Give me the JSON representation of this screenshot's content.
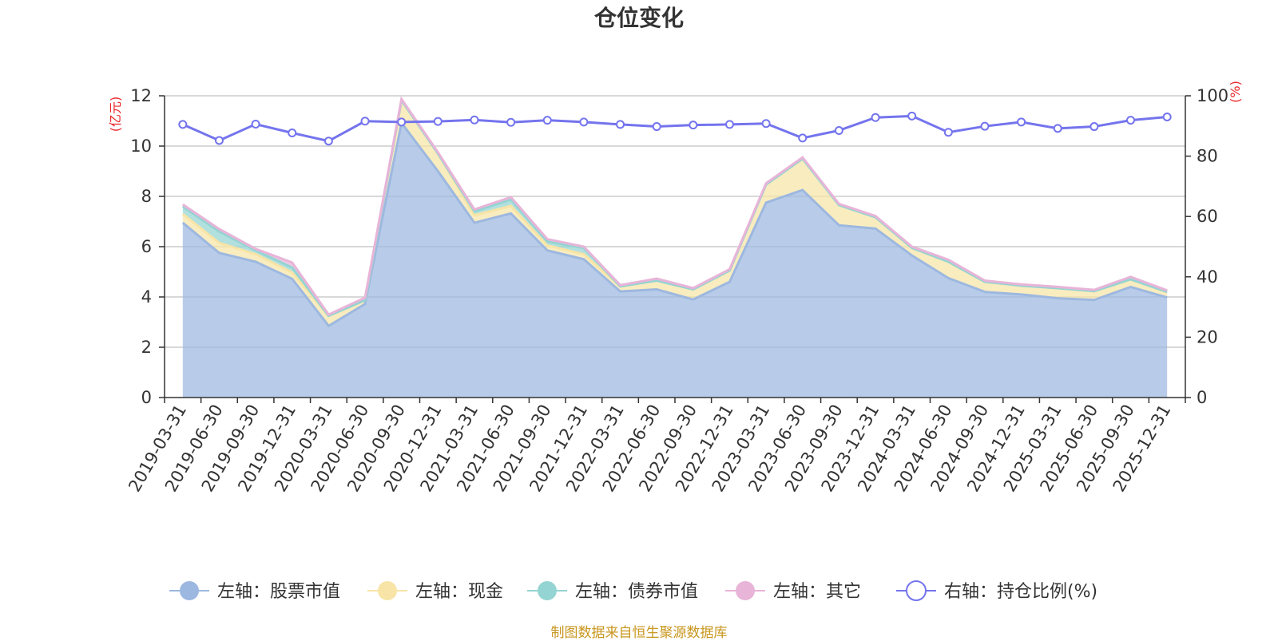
{
  "source_note": "制图数据来自恒生聚源数据库",
  "chart_data": {
    "type": "area",
    "title": "仓位变化",
    "y_left_unit": "(亿元)",
    "y_right_unit": "(%)",
    "y_left_range": [
      0,
      12
    ],
    "y_right_range": [
      0,
      100
    ],
    "y_left_ticks": [
      "0",
      "2",
      "4",
      "6",
      "8",
      "10",
      "12"
    ],
    "y_right_ticks": [
      "0",
      "20",
      "40",
      "60",
      "80",
      "100"
    ],
    "grid": true,
    "legend_position": "bottom",
    "categories": [
      "2019-03-31",
      "2019-06-30",
      "2019-09-30",
      "2019-12-31",
      "2020-03-31",
      "2020-06-30",
      "2020-09-30",
      "2020-12-31",
      "2021-03-31",
      "2021-06-30",
      "2021-09-30",
      "2021-12-31",
      "2022-03-31",
      "2022-06-30",
      "2022-09-30",
      "2022-12-31",
      "2023-03-31",
      "2023-06-30",
      "2023-09-30",
      "2023-12-31",
      "2024-03-31",
      "2024-06-30",
      "2024-09-30",
      "2024-12-31",
      "2025-03-31",
      "2025-06-30",
      "2025-09-30",
      "2025-12-31"
    ],
    "series": [
      {
        "name": "左轴：股票市值",
        "axis": "left",
        "stack": true,
        "color": "#9db8e0",
        "values": [
          6.95,
          5.75,
          5.4,
          4.72,
          2.85,
          3.72,
          10.92,
          9.0,
          6.95,
          7.32,
          5.85,
          5.5,
          4.22,
          4.3,
          3.9,
          4.6,
          7.75,
          8.25,
          6.85,
          6.72,
          5.65,
          4.75,
          4.2,
          4.1,
          3.95,
          3.88,
          4.4,
          3.98
        ]
      },
      {
        "name": "左轴：现金",
        "axis": "left",
        "stack": true,
        "color": "#f7e4a6",
        "values": [
          0.35,
          0.4,
          0.3,
          0.25,
          0.4,
          0.15,
          0.9,
          0.7,
          0.3,
          0.3,
          0.2,
          0.2,
          0.2,
          0.35,
          0.4,
          0.45,
          0.72,
          1.25,
          0.8,
          0.45,
          0.3,
          0.65,
          0.4,
          0.35,
          0.4,
          0.35,
          0.3,
          0.22
        ]
      },
      {
        "name": "左轴：债券市值",
        "axis": "left",
        "stack": true,
        "color": "#94d4d2",
        "values": [
          0.3,
          0.45,
          0.15,
          0.2,
          0,
          0,
          0,
          0,
          0.15,
          0.25,
          0.15,
          0.25,
          0,
          0,
          0,
          0,
          0,
          0,
          0,
          0,
          0,
          0,
          0,
          0,
          0,
          0,
          0,
          0
        ]
      },
      {
        "name": "左轴：其它",
        "axis": "left",
        "stack": true,
        "color": "#e8b4d8",
        "values": [
          0.08,
          0.1,
          0.06,
          0.2,
          0.05,
          0.1,
          0.05,
          0.05,
          0.08,
          0.1,
          0.1,
          0.05,
          0.05,
          0.08,
          0.05,
          0.05,
          0.05,
          0.05,
          0.05,
          0.05,
          0.05,
          0.08,
          0.05,
          0.05,
          0.05,
          0.05,
          0.1,
          0.06
        ]
      },
      {
        "name": "右轴：持仓比例(%)",
        "axis": "right",
        "type": "line",
        "color": "#7474ee",
        "values": [
          90.5,
          85.2,
          90.6,
          87.7,
          85.0,
          91.6,
          91.3,
          91.5,
          92.0,
          91.2,
          91.9,
          91.3,
          90.5,
          89.8,
          90.3,
          90.5,
          90.8,
          86.0,
          88.5,
          92.8,
          93.3,
          87.9,
          89.9,
          91.3,
          89.2,
          89.8,
          91.9,
          93.0
        ]
      }
    ]
  }
}
